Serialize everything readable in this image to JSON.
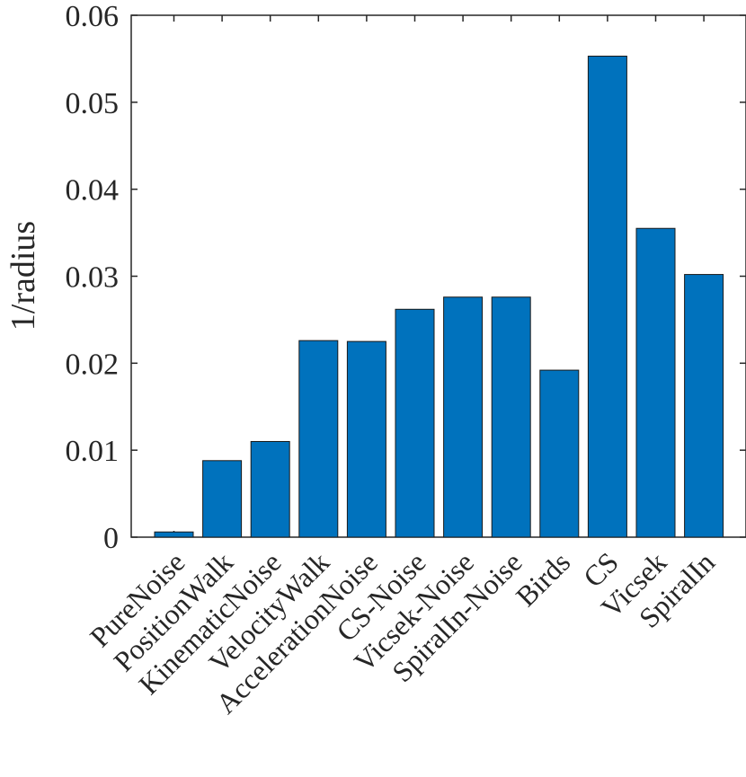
{
  "chart_data": {
    "type": "bar",
    "title": "",
    "xlabel": "",
    "ylabel": "1/radius",
    "ylim": [
      0,
      0.06
    ],
    "yticks": [
      0,
      0.01,
      0.02,
      0.03,
      0.04,
      0.05,
      0.06
    ],
    "ytick_labels": [
      "0",
      "0.01",
      "0.02",
      "0.03",
      "0.04",
      "0.05",
      "0.06"
    ],
    "grid": false,
    "bar_color": "#0072BD",
    "categories": [
      "PureNoise",
      "PositionWalk",
      "KinematicNoise",
      "VelocityWalk",
      "AccelerationNoise",
      "CS-Noise",
      "Vicsek-Noise",
      "SpiralIn-Noise",
      "Birds",
      "CS",
      "Vicsek",
      "SpiralIn"
    ],
    "values": [
      0.0006,
      0.0088,
      0.011,
      0.0226,
      0.0225,
      0.0262,
      0.0276,
      0.0276,
      0.0192,
      0.0553,
      0.0355,
      0.0302
    ]
  }
}
